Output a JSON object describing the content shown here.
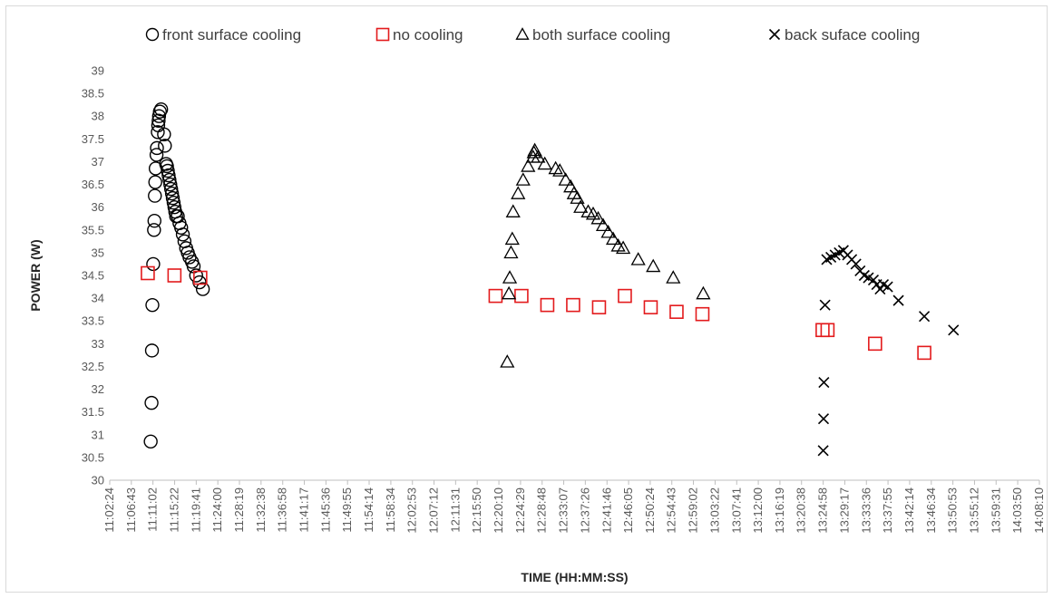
{
  "chart_data": {
    "type": "scatter",
    "title": "",
    "xlabel": "TIME (HH:MM:SS)",
    "ylabel": "POWER (W)",
    "x_tick_labels": [
      "11:02:24",
      "11:06:43",
      "11:11:02",
      "11:15:22",
      "11:19:41",
      "11:24:00",
      "11:28:19",
      "11:32:38",
      "11:36:58",
      "11:41:17",
      "11:45:36",
      "11:49:55",
      "11:54:14",
      "11:58:34",
      "12:02:53",
      "12:07:12",
      "12:11:31",
      "12:15:50",
      "12:20:10",
      "12:24:29",
      "12:28:48",
      "12:33:07",
      "12:37:26",
      "12:41:46",
      "12:46:05",
      "12:50:24",
      "12:54:43",
      "12:59:02",
      "13:03:22",
      "13:07:41",
      "13:12:00",
      "13:16:19",
      "13:20:38",
      "13:24:58",
      "13:29:17",
      "13:33:36",
      "13:37:55",
      "13:42:14",
      "13:46:34",
      "13:50:53",
      "13:55:12",
      "13:59:31",
      "14:03:50",
      "14:08:10"
    ],
    "ylim": [
      30,
      39
    ],
    "y_ticks": [
      "30",
      "30.5",
      "31",
      "31.5",
      "32",
      "32.5",
      "33",
      "33.5",
      "34",
      "34.5",
      "35",
      "35.5",
      "36",
      "36.5",
      "37",
      "37.5",
      "38",
      "38.5",
      "39"
    ],
    "legend_position": "top",
    "grid": false,
    "series": [
      {
        "name": "front surface cooling",
        "marker": "circle",
        "color": "#000000",
        "points": [
          [
            "11:10:35",
            30.85
          ],
          [
            "11:10:45",
            31.7
          ],
          [
            "11:10:50",
            32.85
          ],
          [
            "11:10:55",
            33.85
          ],
          [
            "11:11:05",
            34.75
          ],
          [
            "11:11:15",
            35.5
          ],
          [
            "11:11:20",
            35.7
          ],
          [
            "11:11:25",
            36.25
          ],
          [
            "11:11:30",
            36.55
          ],
          [
            "11:11:35",
            36.85
          ],
          [
            "11:11:45",
            37.15
          ],
          [
            "11:11:50",
            37.3
          ],
          [
            "11:12:00",
            37.65
          ],
          [
            "11:12:05",
            37.8
          ],
          [
            "11:12:10",
            37.9
          ],
          [
            "11:12:15",
            38.0
          ],
          [
            "11:12:25",
            38.1
          ],
          [
            "11:12:40",
            38.15
          ],
          [
            "11:13:15",
            37.6
          ],
          [
            "11:13:25",
            37.35
          ],
          [
            "11:13:40",
            36.95
          ],
          [
            "11:13:50",
            36.9
          ],
          [
            "11:14:00",
            36.8
          ],
          [
            "11:14:10",
            36.7
          ],
          [
            "11:14:20",
            36.6
          ],
          [
            "11:14:30",
            36.5
          ],
          [
            "11:14:40",
            36.4
          ],
          [
            "11:14:50",
            36.3
          ],
          [
            "11:15:00",
            36.2
          ],
          [
            "11:15:10",
            36.1
          ],
          [
            "11:15:20",
            36.0
          ],
          [
            "11:15:30",
            35.9
          ],
          [
            "11:15:40",
            35.8
          ],
          [
            "11:16:00",
            35.8
          ],
          [
            "11:16:20",
            35.65
          ],
          [
            "11:16:40",
            35.55
          ],
          [
            "11:17:00",
            35.4
          ],
          [
            "11:17:20",
            35.25
          ],
          [
            "11:17:40",
            35.1
          ],
          [
            "11:18:00",
            35.0
          ],
          [
            "11:18:20",
            34.9
          ],
          [
            "11:18:50",
            34.8
          ],
          [
            "11:19:10",
            34.7
          ],
          [
            "11:19:40",
            34.5
          ],
          [
            "11:20:20",
            34.35
          ],
          [
            "11:21:00",
            34.2
          ]
        ]
      },
      {
        "name": "no cooling",
        "marker": "square",
        "color": "#e31a1c",
        "points": [
          [
            "11:10:00",
            34.55
          ],
          [
            "11:15:20",
            34.5
          ],
          [
            "11:20:30",
            34.45
          ],
          [
            "12:19:30",
            34.05
          ],
          [
            "12:24:40",
            34.05
          ],
          [
            "12:29:50",
            33.85
          ],
          [
            "12:35:00",
            33.85
          ],
          [
            "12:40:10",
            33.8
          ],
          [
            "12:45:20",
            34.05
          ],
          [
            "12:50:30",
            33.8
          ],
          [
            "12:55:40",
            33.7
          ],
          [
            "13:00:50",
            33.65
          ],
          [
            "13:24:50",
            33.3
          ],
          [
            "13:25:50",
            33.3
          ],
          [
            "13:35:20",
            33.0
          ],
          [
            "13:45:10",
            32.8
          ]
        ]
      },
      {
        "name": "both surface cooling",
        "marker": "triangle",
        "color": "#000000",
        "points": [
          [
            "12:21:50",
            32.6
          ],
          [
            "12:22:10",
            34.1
          ],
          [
            "12:22:20",
            34.45
          ],
          [
            "12:22:35",
            35.0
          ],
          [
            "12:22:50",
            35.3
          ],
          [
            "12:23:00",
            35.9
          ],
          [
            "12:24:00",
            36.3
          ],
          [
            "12:25:00",
            36.6
          ],
          [
            "12:26:00",
            36.9
          ],
          [
            "12:27:00",
            37.1
          ],
          [
            "12:27:10",
            37.2
          ],
          [
            "12:27:20",
            37.25
          ],
          [
            "12:28:00",
            37.1
          ],
          [
            "12:29:20",
            36.95
          ],
          [
            "12:31:30",
            36.85
          ],
          [
            "12:32:20",
            36.8
          ],
          [
            "12:33:30",
            36.6
          ],
          [
            "12:34:30",
            36.45
          ],
          [
            "12:35:10",
            36.3
          ],
          [
            "12:35:50",
            36.2
          ],
          [
            "12:36:30",
            36.0
          ],
          [
            "12:38:00",
            35.9
          ],
          [
            "12:39:00",
            35.85
          ],
          [
            "12:40:00",
            35.75
          ],
          [
            "12:41:00",
            35.6
          ],
          [
            "12:42:00",
            35.45
          ],
          [
            "12:43:00",
            35.3
          ],
          [
            "12:44:00",
            35.15
          ],
          [
            "12:45:00",
            35.1
          ],
          [
            "12:48:00",
            34.85
          ],
          [
            "12:51:00",
            34.7
          ],
          [
            "12:55:00",
            34.45
          ],
          [
            "13:01:00",
            34.1
          ]
        ]
      },
      {
        "name": "back suface cooling",
        "marker": "x",
        "color": "#000000",
        "points": [
          [
            "13:24:58",
            30.65
          ],
          [
            "13:25:02",
            31.35
          ],
          [
            "13:25:06",
            32.15
          ],
          [
            "13:25:20",
            33.85
          ],
          [
            "13:25:40",
            34.85
          ],
          [
            "13:26:30",
            34.9
          ],
          [
            "13:27:20",
            34.95
          ],
          [
            "13:28:10",
            35.0
          ],
          [
            "13:29:00",
            35.05
          ],
          [
            "13:29:50",
            34.95
          ],
          [
            "13:30:40",
            34.85
          ],
          [
            "13:31:30",
            34.75
          ],
          [
            "13:32:20",
            34.6
          ],
          [
            "13:33:10",
            34.5
          ],
          [
            "13:34:00",
            34.45
          ],
          [
            "13:35:00",
            34.4
          ],
          [
            "13:35:40",
            34.3
          ],
          [
            "13:36:20",
            34.2
          ],
          [
            "13:37:00",
            34.3
          ],
          [
            "13:37:50",
            34.25
          ],
          [
            "13:40:00",
            33.95
          ],
          [
            "13:45:10",
            33.6
          ],
          [
            "13:51:00",
            33.3
          ]
        ]
      }
    ]
  }
}
